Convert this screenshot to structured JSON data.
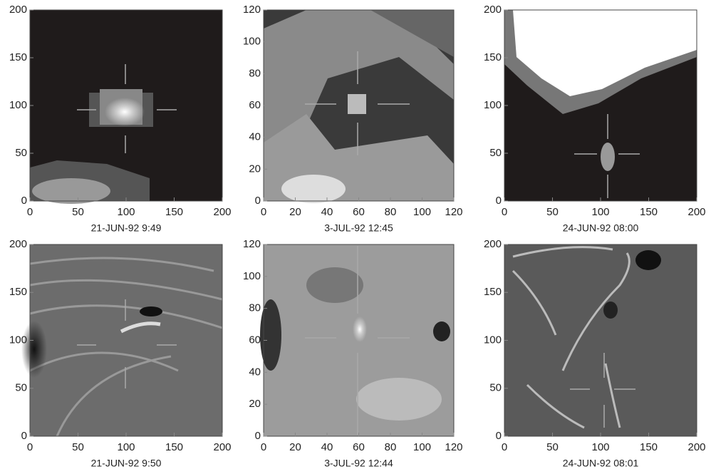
{
  "chart_data": [
    {
      "type": "image",
      "caption": "21-JUN-92  9:49",
      "xlim": [
        0,
        200
      ],
      "ylim": [
        0,
        200
      ],
      "xticks": [
        0,
        50,
        100,
        150,
        200
      ],
      "yticks": [
        0,
        50,
        100,
        150,
        200
      ]
    },
    {
      "type": "image",
      "caption": "3-JUL-92 12:45",
      "xlim": [
        0,
        120
      ],
      "ylim": [
        0,
        120
      ],
      "xticks": [
        0,
        20,
        40,
        60,
        80,
        100,
        120
      ],
      "yticks": [
        0,
        20,
        40,
        60,
        80,
        100,
        120
      ]
    },
    {
      "type": "image",
      "caption": "24-JUN-92 08:00",
      "xlim": [
        0,
        200
      ],
      "ylim": [
        0,
        200
      ],
      "xticks": [
        0,
        50,
        100,
        150,
        200
      ],
      "yticks": [
        0,
        50,
        100,
        150,
        200
      ]
    },
    {
      "type": "image",
      "caption": "21-JUN-92  9:50",
      "xlim": [
        0,
        200
      ],
      "ylim": [
        0,
        200
      ],
      "xticks": [
        0,
        50,
        100,
        150,
        200
      ],
      "yticks": [
        0,
        50,
        100,
        150,
        200
      ]
    },
    {
      "type": "image",
      "caption": "3-JUL-92 12:44",
      "xlim": [
        0,
        120
      ],
      "ylim": [
        0,
        120
      ],
      "xticks": [
        0,
        20,
        40,
        60,
        80,
        100,
        120
      ],
      "yticks": [
        0,
        20,
        40,
        60,
        80,
        100,
        120
      ]
    },
    {
      "type": "image",
      "caption": "24-JUN-92 08:01",
      "xlim": [
        0,
        200
      ],
      "ylim": [
        0,
        200
      ],
      "xticks": [
        0,
        50,
        100,
        150,
        200
      ],
      "yticks": [
        0,
        50,
        100,
        150,
        200
      ]
    }
  ]
}
